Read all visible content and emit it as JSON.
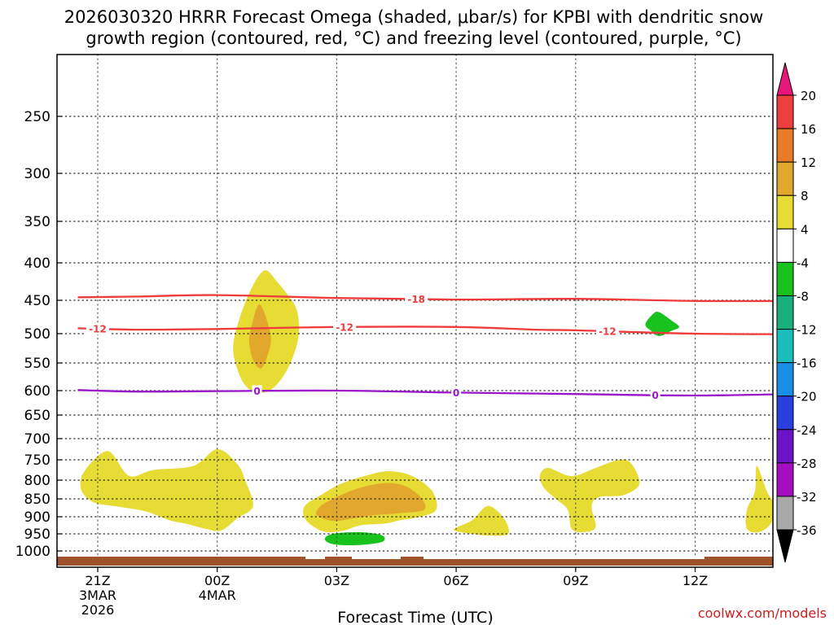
{
  "chart_data": {
    "type": "time-height cross section",
    "title_line1": "2026030320 HRRR Forecast Omega (shaded, μbar/s) for KPBI with dendritic snow",
    "title_line2": "growth region (contoured, red, °C) and freezing level (contoured, purple, °C)",
    "xlabel": "Forecast Time (UTC)",
    "credit": "coolwx.com/models",
    "y_unit": "hPa",
    "yticks": [
      250,
      300,
      350,
      400,
      450,
      500,
      550,
      600,
      650,
      700,
      750,
      800,
      850,
      900,
      950,
      1000
    ],
    "x_range_hours": [
      -1.5,
      14.0
    ],
    "x_ticks": [
      {
        "hour": 0,
        "lines": [
          "21Z",
          "3MAR",
          "2026"
        ]
      },
      {
        "hour": 3,
        "lines": [
          "00Z",
          "4MAR"
        ]
      },
      {
        "hour": 6,
        "lines": [
          "03Z"
        ]
      },
      {
        "hour": 9,
        "lines": [
          "06Z"
        ]
      },
      {
        "hour": 12,
        "lines": [
          "09Z"
        ]
      },
      {
        "hour": 15,
        "lines": [
          "12Z"
        ]
      }
    ],
    "colorbar": {
      "labels": [
        "20",
        "16",
        "12",
        "8",
        "4",
        "-4",
        "-8",
        "-12",
        "-16",
        "-20",
        "-24",
        "-28",
        "-32",
        "-36"
      ],
      "colors": [
        "#e8157a",
        "#ee3e3e",
        "#e87b27",
        "#e2a72d",
        "#e7dc34",
        "#ffffff",
        "#19c31e",
        "#18b07c",
        "#1cbdbd",
        "#198ee6",
        "#2a3fe0",
        "#6c13c8",
        "#a30fc0",
        "#a9a9a9",
        "#000000"
      ]
    },
    "contours": [
      {
        "name": "dendritic-minus18",
        "label": "-18",
        "color": "#ee3b3b",
        "points": [
          [
            -0.5,
            446
          ],
          [
            1,
            445
          ],
          [
            3,
            443
          ],
          [
            6,
            447
          ],
          [
            9,
            449
          ],
          [
            12,
            448
          ],
          [
            15,
            451
          ],
          [
            18,
            451
          ]
        ],
        "label_hours": [
          8.0
        ]
      },
      {
        "name": "dendritic-minus12",
        "label": "-12",
        "color": "#ee3b3b",
        "points": [
          [
            -0.5,
            492
          ],
          [
            1,
            494
          ],
          [
            3,
            493
          ],
          [
            6,
            490
          ],
          [
            9,
            490
          ],
          [
            11,
            494
          ],
          [
            12,
            495
          ],
          [
            15,
            500
          ],
          [
            18,
            501
          ]
        ],
        "label_hours": [
          0.0,
          6.2,
          12.8
        ]
      },
      {
        "name": "freezing-level-0",
        "label": "0",
        "color": "#9a14c8",
        "points": [
          [
            -0.5,
            599
          ],
          [
            1,
            602
          ],
          [
            3,
            601
          ],
          [
            6,
            600
          ],
          [
            9,
            604
          ],
          [
            12,
            607
          ],
          [
            15,
            610
          ],
          [
            18,
            606
          ]
        ],
        "label_hours": [
          4.0,
          9.0,
          14.0
        ]
      }
    ],
    "omega_regions": [
      {
        "name": "omega-upper-positive",
        "value_range": "4 to 8",
        "color": "#e7dc34",
        "points": [
          [
            3.4,
            520
          ],
          [
            3.6,
            470
          ],
          [
            3.9,
            430
          ],
          [
            4.2,
            410
          ],
          [
            4.5,
            425
          ],
          [
            4.8,
            445
          ],
          [
            5.0,
            465
          ],
          [
            5.05,
            500
          ],
          [
            4.9,
            540
          ],
          [
            4.65,
            575
          ],
          [
            4.35,
            598
          ],
          [
            4.0,
            605
          ],
          [
            3.7,
            590
          ],
          [
            3.5,
            560
          ]
        ]
      },
      {
        "name": "omega-upper-core",
        "value_range": "8 to 12",
        "color": "#e2a72d",
        "points": [
          [
            3.8,
            510
          ],
          [
            3.9,
            480
          ],
          [
            4.0,
            460
          ],
          [
            4.1,
            458
          ],
          [
            4.25,
            480
          ],
          [
            4.35,
            510
          ],
          [
            4.25,
            540
          ],
          [
            4.1,
            560
          ],
          [
            3.9,
            545
          ]
        ]
      },
      {
        "name": "omega-lower-left",
        "value_range": "4 to 8",
        "color": "#e7dc34",
        "points": [
          [
            -0.4,
            790
          ],
          [
            -0.1,
            750
          ],
          [
            0.2,
            730
          ],
          [
            0.4,
            740
          ],
          [
            0.8,
            790
          ],
          [
            1.4,
            775
          ],
          [
            2.4,
            765
          ],
          [
            3.0,
            725
          ],
          [
            3.5,
            760
          ],
          [
            3.7,
            800
          ],
          [
            3.9,
            870
          ],
          [
            3.5,
            905
          ],
          [
            3.1,
            940
          ],
          [
            2.7,
            935
          ],
          [
            2.2,
            920
          ],
          [
            1.8,
            910
          ],
          [
            1.2,
            885
          ],
          [
            0.4,
            870
          ],
          [
            -0.1,
            860
          ],
          [
            -0.4,
            830
          ]
        ]
      },
      {
        "name": "omega-lower-center",
        "value_range": "4 to 8",
        "color": "#e7dc34",
        "points": [
          [
            5.2,
            905
          ],
          [
            5.2,
            870
          ],
          [
            5.6,
            840
          ],
          [
            6.1,
            810
          ],
          [
            6.7,
            790
          ],
          [
            7.3,
            778
          ],
          [
            7.9,
            790
          ],
          [
            8.4,
            830
          ],
          [
            8.5,
            880
          ],
          [
            8.1,
            900
          ],
          [
            7.6,
            910
          ],
          [
            7.2,
            920
          ],
          [
            6.6,
            925
          ],
          [
            6.2,
            940
          ],
          [
            5.8,
            945
          ],
          [
            5.5,
            935
          ]
        ]
      },
      {
        "name": "omega-lower-center-core",
        "value_range": "8 to 12",
        "color": "#e2a72d",
        "points": [
          [
            5.5,
            895
          ],
          [
            5.6,
            870
          ],
          [
            6.0,
            845
          ],
          [
            6.6,
            820
          ],
          [
            7.2,
            808
          ],
          [
            7.7,
            815
          ],
          [
            8.1,
            845
          ],
          [
            8.2,
            880
          ],
          [
            7.6,
            890
          ],
          [
            7.0,
            895
          ],
          [
            6.4,
            905
          ],
          [
            5.9,
            912
          ]
        ]
      },
      {
        "name": "omega-lower-center-right",
        "value_range": "4 to 8",
        "color": "#e7dc34",
        "points": [
          [
            8.95,
            935
          ],
          [
            9.4,
            910
          ],
          [
            9.8,
            870
          ],
          [
            10.2,
            905
          ],
          [
            10.3,
            950
          ],
          [
            9.8,
            955
          ],
          [
            9.4,
            950
          ],
          [
            9.1,
            945
          ]
        ]
      },
      {
        "name": "omega-lower-right",
        "value_range": "4 to 8",
        "color": "#e7dc34",
        "points": [
          [
            11.1,
            790
          ],
          [
            11.3,
            770
          ],
          [
            11.9,
            790
          ],
          [
            12.5,
            770
          ],
          [
            13.1,
            750
          ],
          [
            13.4,
            760
          ],
          [
            13.6,
            810
          ],
          [
            13.2,
            840
          ],
          [
            12.6,
            845
          ],
          [
            12.4,
            870
          ],
          [
            12.5,
            930
          ],
          [
            12.2,
            945
          ],
          [
            11.9,
            935
          ],
          [
            11.8,
            880
          ],
          [
            11.5,
            850
          ],
          [
            11.2,
            820
          ]
        ]
      },
      {
        "name": "omega-far-right",
        "value_range": "4 to 8",
        "color": "#e7dc34",
        "points": [
          [
            16.3,
            880
          ],
          [
            16.5,
            830
          ],
          [
            16.55,
            765
          ],
          [
            16.8,
            830
          ],
          [
            17.0,
            870
          ],
          [
            16.9,
            920
          ],
          [
            16.6,
            945
          ],
          [
            16.3,
            935
          ]
        ]
      },
      {
        "name": "omega-edge-right",
        "value_range": "4 to 8",
        "color": "#e7dc34",
        "points": [
          [
            18.0,
            870
          ],
          [
            18.5,
            860
          ],
          [
            18.5,
            915
          ],
          [
            18.1,
            910
          ]
        ]
      },
      {
        "name": "omega-negative-small",
        "value_range": "-4 to -8",
        "color": "#19c31e",
        "points": [
          [
            13.75,
            486
          ],
          [
            13.95,
            470
          ],
          [
            14.1,
            468
          ],
          [
            14.4,
            480
          ],
          [
            14.6,
            490
          ],
          [
            14.4,
            496
          ],
          [
            14.1,
            504
          ],
          [
            13.9,
            496
          ]
        ]
      },
      {
        "name": "omega-negative-lower",
        "value_range": "-4 to -8",
        "color": "#19c31e",
        "points": [
          [
            5.7,
            965
          ],
          [
            5.9,
            950
          ],
          [
            6.5,
            945
          ],
          [
            7.0,
            950
          ],
          [
            7.2,
            960
          ],
          [
            7.1,
            975
          ],
          [
            6.5,
            983
          ],
          [
            5.9,
            980
          ]
        ]
      }
    ]
  }
}
